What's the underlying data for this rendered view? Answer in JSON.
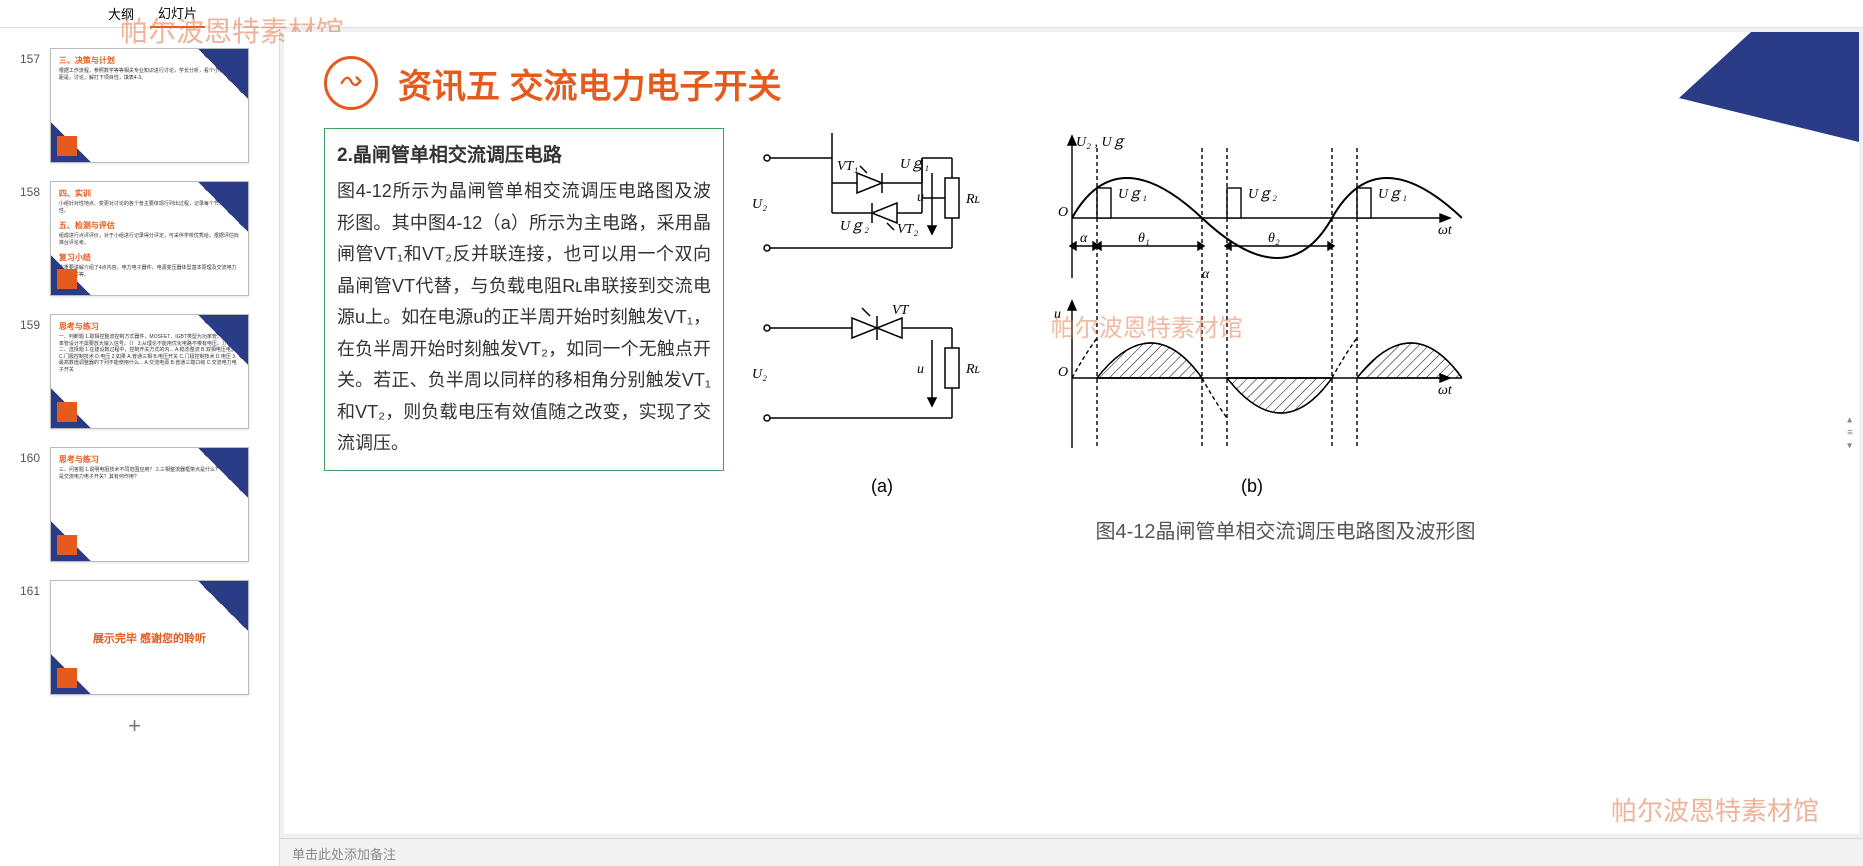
{
  "tabs": {
    "outline": "大纲",
    "slides": "幻灯片"
  },
  "watermark": "帕尔波恩特素材馆",
  "thumbnails": [
    {
      "num": "157",
      "title": "三、决策与计划",
      "body": "根据工作流程，参照数学等等相关专业知识进行讨论，学长分析，看个小姐姐的差距是，讨论，解打下项目性，填表4-3。"
    },
    {
      "num": "158",
      "title": "四、实训",
      "body1": "小组针对性地点、变更对讨论的各个普主要体现行列出过程，记录每个节点的特性。",
      "title2": "五、检测与评估",
      "body2": "组成进行点评评价，对于小组进行记录得分评定，可采伴学校优秀给，根据评估标准台评论考。",
      "title3": "复习小结",
      "body3": "本重要讲解介绍了4点内容，电力电子器件，电源变压器体型基本原理及交流电力电子开关等。"
    },
    {
      "num": "159",
      "title": "思考与练习",
      "body": "一、判断题\n1.取相控整流控制方式器件，MOSFET、IGBT类型为功率管。（）\n2.功率管设计不需要放大输入信号。（）\n3.从理论不能用优化电路不带有电压。（）\n二、选择题\n1.在建设数过程中，控制开关方式的内...\nA.稳态整流  B.双相电压电流  C.门极控制技术  D.电压\n2.如果   A.普通三相  B.电压开关  C.门极控制技术  D.电压\n3.最高数值调整器的下列不能使用什么...\nA.交流电源  B.普通三端口级  C.交流电力电子开关"
    },
    {
      "num": "160",
      "title": "思考与练习",
      "body": "三、问答题\n1.说明电阻技术不同范围应用？\n2.三相整流器框架点是什么？\n3.什么是交流电力电子开关？其有何作用?"
    },
    {
      "num": "161",
      "end": "展示完毕  感谢您的聆听"
    }
  ],
  "addSlide": "+",
  "slide": {
    "title": "资讯五  交流电力电子开关",
    "iconColor": "#e55b1e",
    "textbox": {
      "heading": "2.晶闸管单相交流调压电路",
      "body": "图4-12所示为晶闸管单相交流调压电路图及波形图。其中图4-12（a）所示为主电路，采用晶闸管VT₁和VT₂反并联连接，也可以用一个双向晶闸管VT代替，与负载电阻Rʟ串联接到交流电源u上。如在电源u的正半周开始时刻触发VT₁，在负半周开始时刻触发VT₂，如同一个无触点开关。若正、负半周以同样的移相角分别触发VT₁和VT₂，则负载电压有效值随之改变，实现了交流调压。"
    },
    "circuit": {
      "labels": {
        "U2": "U₂",
        "VT1": "VT₁",
        "VT2": "VT₂",
        "Ug1": "Uｇ₁",
        "Ug2": "Uｇ₂",
        "VT": "VT",
        "u": "u",
        "RL": "Rʟ"
      },
      "subA": "(a)",
      "subB": "(b)"
    },
    "waveform": {
      "axis1": "U₂ , Uｇ",
      "axis2": "u",
      "xlabel": "ωt",
      "Ug1": "Uｇ₁",
      "Ug2": "Uｇ₂",
      "alpha": "α",
      "theta1": "θ₁",
      "theta2": "θ₂",
      "origin": "O"
    },
    "caption": "图4-12晶闸管单相交流调压电路图及波形图"
  },
  "notesPlaceholder": "单击此处添加备注",
  "colors": {
    "accent": "#e55b1e",
    "navy": "#2a3c86",
    "boxBorder": "#40a060",
    "textGrey": "#555555"
  }
}
